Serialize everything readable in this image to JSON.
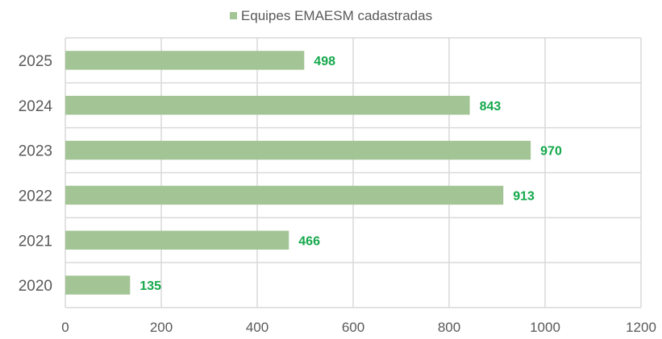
{
  "chart_data": {
    "type": "bar",
    "orientation": "horizontal",
    "categories": [
      "2020",
      "2021",
      "2022",
      "2023",
      "2024",
      "2025"
    ],
    "series": [
      {
        "name": "Equipes EMAESM cadastradas",
        "values": [
          135,
          466,
          913,
          970,
          843,
          498
        ],
        "color": "#a3c595"
      }
    ],
    "data_labels": [
      "135",
      "466",
      "913",
      "970",
      "843",
      "498"
    ],
    "data_label_color": "#14a84b",
    "xlim": [
      0,
      1200
    ],
    "x_ticks": [
      0,
      200,
      400,
      600,
      800,
      1000,
      1200
    ],
    "x_tick_labels": [
      "0",
      "200",
      "400",
      "600",
      "800",
      "1000",
      "1200"
    ],
    "grid": true,
    "legend_position": "top"
  }
}
